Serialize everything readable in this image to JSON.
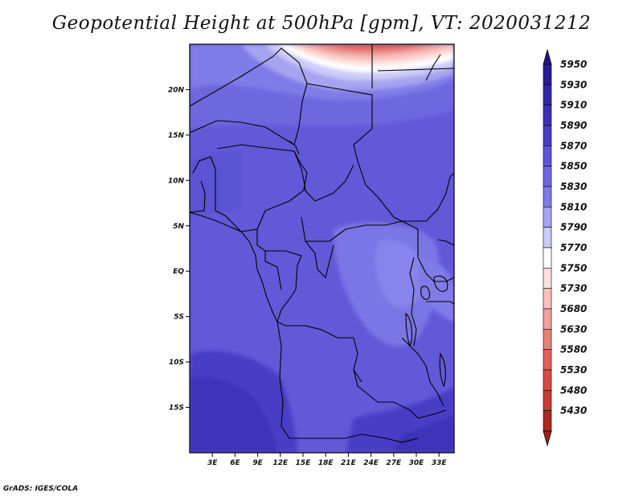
{
  "title": "Geopotential Height at 500hPa [gpm], VT: 2020031212",
  "credit": "GrADS: IGES/COLA",
  "map": {
    "lon_range": [
      0,
      35
    ],
    "lat_range": [
      -20,
      25
    ],
    "lat_ticks": [
      {
        "value": 20,
        "label": "20N"
      },
      {
        "value": 15,
        "label": "15N"
      },
      {
        "value": 10,
        "label": "10N"
      },
      {
        "value": 5,
        "label": "5N"
      },
      {
        "value": 0,
        "label": "EQ"
      },
      {
        "value": -5,
        "label": "5S"
      },
      {
        "value": -10,
        "label": "10S"
      },
      {
        "value": -15,
        "label": "15S"
      }
    ],
    "lon_ticks": [
      {
        "value": 3,
        "label": "3E"
      },
      {
        "value": 6,
        "label": "6E"
      },
      {
        "value": 9,
        "label": "9E"
      },
      {
        "value": 12,
        "label": "12E"
      },
      {
        "value": 15,
        "label": "15E"
      },
      {
        "value": 18,
        "label": "18E"
      },
      {
        "value": 21,
        "label": "21E"
      },
      {
        "value": 24,
        "label": "24E"
      },
      {
        "value": 27,
        "label": "27E"
      },
      {
        "value": 30,
        "label": "30E"
      },
      {
        "value": 33,
        "label": "33E"
      }
    ]
  },
  "colorbar": {
    "levels": [
      {
        "label": "5950",
        "color": "#2a1a96"
      },
      {
        "label": "5930",
        "color": "#3326a8"
      },
      {
        "label": "5910",
        "color": "#3a30b4"
      },
      {
        "label": "5890",
        "color": "#4a3ec6"
      },
      {
        "label": "5870",
        "color": "#5e55d6"
      },
      {
        "label": "5850",
        "color": "#6e67df"
      },
      {
        "label": "5830",
        "color": "#7f7ce8"
      },
      {
        "label": "5810",
        "color": "#a6a4f0"
      },
      {
        "label": "5790",
        "color": "#ccccf7"
      },
      {
        "label": "5770",
        "color": "#ffffff"
      },
      {
        "label": "5750",
        "color": "#fde0de"
      },
      {
        "label": "5730",
        "color": "#f8c3be"
      },
      {
        "label": "5680",
        "color": "#f0a09a"
      },
      {
        "label": "5630",
        "color": "#e78079"
      },
      {
        "label": "5580",
        "color": "#e06058"
      },
      {
        "label": "5530",
        "color": "#d84a42"
      },
      {
        "label": "5480",
        "color": "#c83a32"
      },
      {
        "label": "5430",
        "color": "#b02820"
      }
    ],
    "top_arrow_color": "#221488",
    "bottom_arrow_color": "#9c2018"
  }
}
